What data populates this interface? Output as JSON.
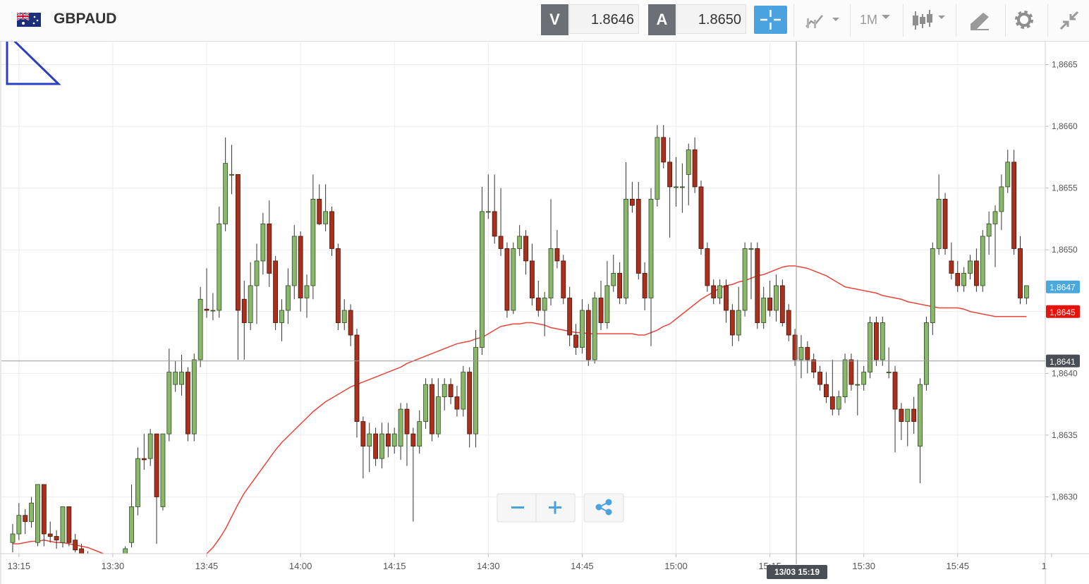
{
  "chart_data": {
    "type": "candlestick",
    "title": "GBPAUD",
    "toolbar": {
      "sell_label": "V",
      "sell_price": "1.8646",
      "buy_label": "A",
      "buy_price": "1.8650",
      "timeframe": "1M"
    },
    "up_color": "#8ab86a",
    "down_color": "#a8301c",
    "open": [
      1.86263,
      1.8627,
      1.86285,
      1.8628,
      1.86263,
      1.8631,
      1.8627,
      1.86268,
      1.86263,
      1.86292,
      1.86265,
      1.86258,
      1.86253,
      1.86248,
      1.86243,
      1.86239,
      1.86241,
      1.86238,
      1.86246,
      1.86263,
      1.86292,
      1.86331,
      1.86331,
      1.86351,
      1.86292,
      1.86351,
      1.86391,
      1.86391,
      1.86401,
      1.86351,
      1.86411,
      1.86452,
      1.86451,
      1.86451,
      1.86521,
      1.86561,
      1.86561,
      1.8646,
      1.86441,
      1.86471,
      1.86491,
      1.86521,
      1.86491,
      1.86441,
      1.86451,
      1.86471,
      1.86511,
      1.86461,
      1.86471,
      1.86541,
      1.86521,
      1.86531,
      1.86501,
      1.86441,
      1.86451,
      1.86431,
      1.86361,
      1.86341,
      1.86351,
      1.86331,
      1.86351,
      1.86341,
      1.86341,
      1.86371,
      1.86351,
      1.86341,
      1.86361,
      1.86391,
      1.86351,
      1.86381,
      1.86391,
      1.86381,
      1.86371,
      1.86401,
      1.86351,
      1.86421,
      1.86531,
      1.86531,
      1.86511,
      1.86501,
      1.86451,
      1.86501,
      1.86511,
      1.86491,
      1.86461,
      1.86451,
      1.86461,
      1.86501,
      1.86491,
      1.86461,
      1.86431,
      1.86421,
      1.86451,
      1.86411,
      1.86461,
      1.86441,
      1.86471,
      1.86481,
      1.86461,
      1.86541,
      1.86541,
      1.86481,
      1.86461,
      1.86541,
      1.86591,
      1.86571,
      1.86551,
      1.86551,
      1.86561,
      1.86581,
      1.86551,
      1.86501,
      1.86471,
      1.86461,
      1.86471,
      1.86451,
      1.86431,
      1.86451,
      1.86501,
      1.86501,
      1.86441,
      1.86461,
      1.86451,
      1.86471,
      1.86451,
      1.86431,
      1.86411,
      1.86421,
      1.86411,
      1.86401,
      1.86391,
      1.86381,
      1.86371,
      1.86381,
      1.86411,
      1.86391,
      1.86391,
      1.86401,
      1.86441,
      1.86411,
      1.86401,
      1.86401,
      1.86371,
      1.86361,
      1.86371,
      1.86341,
      1.86391,
      1.86441,
      1.86501,
      1.86541,
      1.86491,
      1.86481,
      1.86471,
      1.86481,
      1.86491,
      1.86471,
      1.86511,
      1.86521,
      1.86531,
      1.86551,
      1.86571,
      1.86501,
      1.86461
    ],
    "high": [
      1.86278,
      1.86295,
      1.8629,
      1.863,
      1.8631,
      1.8631,
      1.8628,
      1.86273,
      1.86292,
      1.86292,
      1.8627,
      1.86262,
      1.86256,
      1.86252,
      1.86247,
      1.86244,
      1.86246,
      1.86249,
      1.8626,
      1.8631,
      1.8634,
      1.86351,
      1.86355,
      1.86351,
      1.86351,
      1.8642,
      1.8641,
      1.86415,
      1.86405,
      1.86416,
      1.8647,
      1.86485,
      1.86465,
      1.86535,
      1.86591,
      1.86585,
      1.86561,
      1.86475,
      1.8649,
      1.86505,
      1.8653,
      1.8654,
      1.86495,
      1.8646,
      1.86485,
      1.8652,
      1.86515,
      1.8648,
      1.86561,
      1.86553,
      1.86553,
      1.86535,
      1.86505,
      1.8646,
      1.86456,
      1.86436,
      1.86365,
      1.8636,
      1.86356,
      1.8636,
      1.8636,
      1.86356,
      1.86376,
      1.86376,
      1.86356,
      1.8637,
      1.86396,
      1.86396,
      1.86396,
      1.86396,
      1.86396,
      1.8639,
      1.86406,
      1.86405,
      1.86435,
      1.86551,
      1.86561,
      1.86561,
      1.8655,
      1.86506,
      1.86506,
      1.8652,
      1.86516,
      1.86505,
      1.86475,
      1.86466,
      1.86541,
      1.86516,
      1.86496,
      1.8647,
      1.8644,
      1.8646,
      1.86456,
      1.86466,
      1.86475,
      1.86491,
      1.86496,
      1.8649,
      1.86571,
      1.86555,
      1.86555,
      1.8649,
      1.8655,
      1.86601,
      1.86601,
      1.86591,
      1.86575,
      1.8657,
      1.86586,
      1.86591,
      1.86556,
      1.86506,
      1.86476,
      1.86476,
      1.86476,
      1.86456,
      1.8647,
      1.86506,
      1.86506,
      1.86506,
      1.8647,
      1.86475,
      1.8648,
      1.86476,
      1.86456,
      1.86436,
      1.86431,
      1.86426,
      1.86416,
      1.86406,
      1.86401,
      1.86411,
      1.86386,
      1.86416,
      1.86416,
      1.86411,
      1.86406,
      1.86446,
      1.86446,
      1.86446,
      1.86421,
      1.86406,
      1.86376,
      1.86371,
      1.86381,
      1.86396,
      1.86446,
      1.86506,
      1.86561,
      1.86546,
      1.86506,
      1.86491,
      1.86486,
      1.86496,
      1.86501,
      1.86516,
      1.86531,
      1.86536,
      1.86561,
      1.86581,
      1.86581,
      1.86511,
      1.86471
    ],
    "low": [
      1.86255,
      1.86265,
      1.8627,
      1.86275,
      1.8626,
      1.8626,
      1.86263,
      1.86258,
      1.86259,
      1.8626,
      1.86255,
      1.86252,
      1.86245,
      1.8624,
      1.86236,
      1.86233,
      1.86235,
      1.86236,
      1.86243,
      1.86259,
      1.86285,
      1.86322,
      1.86325,
      1.86262,
      1.86289,
      1.86345,
      1.86385,
      1.86382,
      1.86345,
      1.86345,
      1.86405,
      1.86445,
      1.86443,
      1.86445,
      1.86515,
      1.86545,
      1.86411,
      1.86411,
      1.86435,
      1.8644,
      1.8648,
      1.8647,
      1.86435,
      1.86426,
      1.8644,
      1.8646,
      1.8645,
      1.86445,
      1.8646,
      1.8652,
      1.86515,
      1.86495,
      1.86435,
      1.86435,
      1.86422,
      1.86348,
      1.86315,
      1.8632,
      1.86325,
      1.86323,
      1.86332,
      1.86335,
      1.8633,
      1.86325,
      1.8628,
      1.86335,
      1.86355,
      1.86345,
      1.86348,
      1.8637,
      1.86375,
      1.86365,
      1.86365,
      1.8634,
      1.8634,
      1.86415,
      1.86525,
      1.86505,
      1.86495,
      1.86445,
      1.86448,
      1.86495,
      1.8648,
      1.86455,
      1.86446,
      1.8643,
      1.86455,
      1.86485,
      1.86456,
      1.86422,
      1.86415,
      1.86416,
      1.86406,
      1.86408,
      1.86435,
      1.86436,
      1.86466,
      1.86456,
      1.86456,
      1.8653,
      1.86476,
      1.86451,
      1.86422,
      1.86535,
      1.86566,
      1.8651,
      1.86535,
      1.8653,
      1.86536,
      1.86546,
      1.86496,
      1.86466,
      1.86456,
      1.86456,
      1.86441,
      1.86422,
      1.86426,
      1.86446,
      1.8646,
      1.86436,
      1.86436,
      1.86446,
      1.86442,
      1.86438,
      1.86426,
      1.86406,
      1.86396,
      1.864,
      1.86396,
      1.86386,
      1.86376,
      1.86366,
      1.86366,
      1.86376,
      1.86386,
      1.86366,
      1.86386,
      1.86396,
      1.86406,
      1.86406,
      1.86396,
      1.86336,
      1.86346,
      1.86341,
      1.86351,
      1.86311,
      1.86386,
      1.86431,
      1.86496,
      1.86496,
      1.86476,
      1.86466,
      1.86466,
      1.86476,
      1.86466,
      1.86466,
      1.86496,
      1.86486,
      1.86516,
      1.86546,
      1.86496,
      1.86456,
      1.86456
    ],
    "close": [
      1.8627,
      1.86285,
      1.8628,
      1.86295,
      1.8631,
      1.8627,
      1.86268,
      1.86265,
      1.86292,
      1.86263,
      1.86257,
      1.86253,
      1.86248,
      1.86243,
      1.86239,
      1.86241,
      1.86238,
      1.86246,
      1.86258,
      1.86292,
      1.86331,
      1.8633,
      1.86351,
      1.863,
      1.86351,
      1.86401,
      1.86401,
      1.86401,
      1.86351,
      1.86411,
      1.8646,
      1.86451,
      1.86451,
      1.86521,
      1.8657,
      1.86561,
      1.86451,
      1.86441,
      1.86471,
      1.86491,
      1.86521,
      1.86481,
      1.86441,
      1.86451,
      1.86471,
      1.86511,
      1.86461,
      1.86471,
      1.86541,
      1.86521,
      1.86531,
      1.86501,
      1.86441,
      1.86451,
      1.86431,
      1.86361,
      1.86341,
      1.86351,
      1.86331,
      1.86351,
      1.86341,
      1.86351,
      1.86371,
      1.86351,
      1.86341,
      1.86361,
      1.86391,
      1.86351,
      1.86381,
      1.86391,
      1.86381,
      1.86371,
      1.86401,
      1.86351,
      1.86421,
      1.86531,
      1.86531,
      1.86511,
      1.86501,
      1.86451,
      1.86501,
      1.86511,
      1.86491,
      1.86461,
      1.86451,
      1.86461,
      1.86501,
      1.86491,
      1.86461,
      1.86431,
      1.86421,
      1.86451,
      1.86411,
      1.86461,
      1.86441,
      1.86471,
      1.86481,
      1.86461,
      1.86541,
      1.86536,
      1.86481,
      1.86461,
      1.86541,
      1.86591,
      1.86571,
      1.86551,
      1.86551,
      1.86551,
      1.86581,
      1.86551,
      1.86501,
      1.86471,
      1.86461,
      1.86471,
      1.86451,
      1.86431,
      1.86451,
      1.86501,
      1.86501,
      1.86441,
      1.86461,
      1.86451,
      1.86471,
      1.86441,
      1.86431,
      1.86411,
      1.86421,
      1.86411,
      1.86401,
      1.86391,
      1.86381,
      1.86371,
      1.86381,
      1.86411,
      1.86391,
      1.86391,
      1.86401,
      1.86441,
      1.86411,
      1.86441,
      1.86401,
      1.86371,
      1.86361,
      1.86371,
      1.86361,
      1.86391,
      1.86441,
      1.86501,
      1.86541,
      1.86501,
      1.86481,
      1.86471,
      1.86481,
      1.86491,
      1.86471,
      1.86511,
      1.86521,
      1.86531,
      1.86551,
      1.86571,
      1.86501,
      1.86461,
      1.86471
    ],
    "moving_average": {
      "color": "#e8463c",
      "values": [
        1.86262,
        1.86262,
        1.86263,
        1.86264,
        1.86264,
        1.86265,
        1.86264,
        1.86263,
        1.86263,
        1.86262,
        1.86261,
        1.8626,
        1.86259,
        1.86257,
        1.86255,
        1.86253,
        1.86251,
        1.86249,
        1.86247,
        1.86245,
        1.86243,
        1.86242,
        1.86241,
        1.8624,
        1.8624,
        1.86241,
        1.86242,
        1.86244,
        1.86246,
        1.86248,
        1.86251,
        1.86254,
        1.86259,
        1.86266,
        1.86274,
        1.86284,
        1.86294,
        1.86303,
        1.8631,
        1.86317,
        1.86324,
        1.86331,
        1.86338,
        1.86344,
        1.86349,
        1.86354,
        1.86359,
        1.86364,
        1.86369,
        1.86373,
        1.86377,
        1.8638,
        1.86383,
        1.86386,
        1.86389,
        1.86391,
        1.86393,
        1.86395,
        1.86397,
        1.86399,
        1.86401,
        1.86403,
        1.86405,
        1.86408,
        1.8641,
        1.86412,
        1.86414,
        1.86416,
        1.86418,
        1.8642,
        1.86422,
        1.86424,
        1.86425,
        1.86426,
        1.86428,
        1.86429,
        1.86432,
        1.86435,
        1.86438,
        1.86439,
        1.8644,
        1.8644,
        1.86441,
        1.86441,
        1.8644,
        1.86439,
        1.86437,
        1.86436,
        1.86435,
        1.86434,
        1.86433,
        1.86433,
        1.86432,
        1.86432,
        1.86432,
        1.86432,
        1.86432,
        1.86432,
        1.86432,
        1.86432,
        1.86431,
        1.86431,
        1.86433,
        1.86435,
        1.86438,
        1.8644,
        1.86444,
        1.86448,
        1.86452,
        1.86456,
        1.8646,
        1.86463,
        1.86466,
        1.86469,
        1.86471,
        1.86472,
        1.86474,
        1.86475,
        1.86477,
        1.86479,
        1.8648,
        1.86482,
        1.86484,
        1.86486,
        1.86487,
        1.86487,
        1.86486,
        1.86485,
        1.86483,
        1.86481,
        1.86479,
        1.86476,
        1.86473,
        1.8647,
        1.86469,
        1.86468,
        1.86467,
        1.86466,
        1.86465,
        1.86463,
        1.86462,
        1.86461,
        1.8646,
        1.86458,
        1.86457,
        1.86456,
        1.86455,
        1.86454,
        1.86453,
        1.86453,
        1.86453,
        1.86453,
        1.86452,
        1.8645,
        1.86449,
        1.86448,
        1.86447,
        1.86446,
        1.86446,
        1.86446,
        1.86446,
        1.86446,
        1.86446
      ]
    },
    "xlim": [
      -1.8,
      165
    ],
    "xticks": [
      {
        "value": 1,
        "label": "13:15"
      },
      {
        "value": 16,
        "label": "13:30"
      },
      {
        "value": 31,
        "label": "13:45"
      },
      {
        "value": 46,
        "label": "14:00"
      },
      {
        "value": 61,
        "label": "14:15"
      },
      {
        "value": 76,
        "label": "14:30"
      },
      {
        "value": 91,
        "label": "14:45"
      },
      {
        "value": 106,
        "label": "15:00"
      },
      {
        "value": 121,
        "label": "15:15"
      },
      {
        "value": 136,
        "label": "15:30"
      },
      {
        "value": 151,
        "label": "15:45"
      },
      {
        "value": 166,
        "label": "1"
      }
    ],
    "ylim": [
      1.86254,
      1.86668
    ],
    "yticks": [
      {
        "value": 1.863,
        "label": "1,8630"
      },
      {
        "value": 1.8635,
        "label": "1,8635"
      },
      {
        "value": 1.864,
        "label": "1,8640"
      },
      {
        "value": 1.8645,
        "label": "1,8645"
      },
      {
        "value": 1.865,
        "label": "1,8650"
      },
      {
        "value": 1.8655,
        "label": "1,8655"
      },
      {
        "value": 1.866,
        "label": "1,8660"
      },
      {
        "value": 1.8665,
        "label": "1,8665"
      }
    ],
    "grid": true,
    "price_tags": [
      {
        "value": 1.8647,
        "label": "1,8647",
        "color": "#4aa8dc"
      },
      {
        "value": 1.8645,
        "label": "1,8645",
        "color": "#e8120c"
      }
    ],
    "crosshair": {
      "price": {
        "value": 1.8641,
        "label": "1,8641"
      },
      "time_label": "13/03 15:19"
    }
  }
}
